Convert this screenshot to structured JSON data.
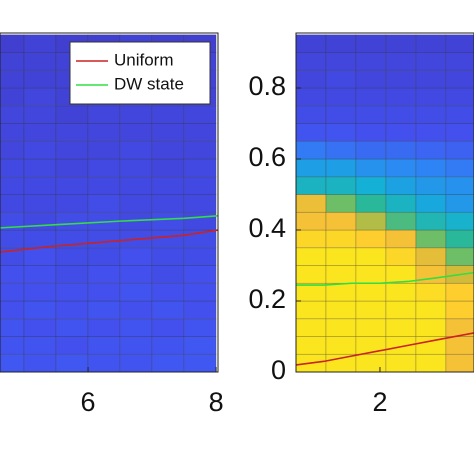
{
  "chart_data": [
    {
      "type": "heatmap",
      "xlim": [
        4.625,
        8.03
      ],
      "ylim": [
        0,
        0.955
      ],
      "xticks": [
        6,
        8
      ],
      "legend": "upper-right",
      "colormap": [
        "#3e26a8",
        "#4352f0",
        "#2d88f5",
        "#13b0d8",
        "#2ab89a",
        "#7fbf5a",
        "#d3bb3a",
        "#fec335",
        "#f9fb0e"
      ],
      "x": [
        4.75,
        5.25,
        5.75,
        6.25,
        6.75,
        7.25,
        7.75
      ],
      "y": [
        0.025,
        0.075,
        0.125,
        0.175,
        0.225,
        0.275,
        0.325,
        0.375,
        0.425,
        0.475,
        0.525,
        0.575,
        0.625,
        0.675,
        0.725,
        0.775,
        0.825,
        0.875,
        0.925
      ],
      "z": [
        [
          0.14,
          0.13,
          0.14,
          0.13,
          0.13,
          0.14,
          0.14
        ],
        [
          0.13,
          0.13,
          0.12,
          0.13,
          0.13,
          0.13,
          0.14
        ],
        [
          0.13,
          0.12,
          0.13,
          0.12,
          0.13,
          0.12,
          0.13
        ],
        [
          0.12,
          0.13,
          0.12,
          0.13,
          0.12,
          0.13,
          0.12
        ],
        [
          0.12,
          0.12,
          0.12,
          0.12,
          0.13,
          0.12,
          0.12
        ],
        [
          0.12,
          0.12,
          0.11,
          0.12,
          0.12,
          0.11,
          0.12
        ],
        [
          0.11,
          0.12,
          0.11,
          0.11,
          0.12,
          0.11,
          0.11
        ],
        [
          0.11,
          0.11,
          0.11,
          0.11,
          0.11,
          0.11,
          0.11
        ],
        [
          0.11,
          0.1,
          0.11,
          0.11,
          0.1,
          0.11,
          0.1
        ],
        [
          0.1,
          0.1,
          0.1,
          0.11,
          0.1,
          0.1,
          0.1
        ],
        [
          0.1,
          0.1,
          0.1,
          0.1,
          0.1,
          0.1,
          0.1
        ],
        [
          0.1,
          0.1,
          0.09,
          0.1,
          0.1,
          0.09,
          0.1
        ],
        [
          0.09,
          0.1,
          0.09,
          0.09,
          0.1,
          0.09,
          0.09
        ],
        [
          0.09,
          0.09,
          0.09,
          0.09,
          0.09,
          0.09,
          0.09
        ],
        [
          0.09,
          0.09,
          0.08,
          0.09,
          0.09,
          0.09,
          0.09
        ],
        [
          0.08,
          0.09,
          0.08,
          0.08,
          0.09,
          0.08,
          0.08
        ],
        [
          0.08,
          0.08,
          0.08,
          0.08,
          0.08,
          0.08,
          0.08
        ],
        [
          0.08,
          0.08,
          0.08,
          0.08,
          0.08,
          0.08,
          0.08
        ],
        [
          0.07,
          0.08,
          0.07,
          0.07,
          0.08,
          0.07,
          0.07
        ]
      ],
      "series": [
        {
          "name": "Uniform",
          "color": "#cc2222",
          "x": [
            4.625,
            5.5,
            6.5,
            7.5,
            8.03
          ],
          "values": [
            0.338,
            0.355,
            0.37,
            0.385,
            0.4
          ]
        },
        {
          "name": "DW state",
          "color": "#33dd44",
          "x": [
            4.625,
            5.5,
            6.5,
            7.5,
            8.03
          ],
          "values": [
            0.406,
            0.415,
            0.425,
            0.433,
            0.44
          ]
        }
      ]
    },
    {
      "type": "heatmap",
      "xlim": [
        0.5,
        3.68
      ],
      "ylim": [
        0,
        0.955
      ],
      "xticks": [
        2
      ],
      "yticks": [
        0,
        0.2,
        0.4,
        0.6,
        0.8
      ],
      "colormap": [
        "#3e26a8",
        "#4352f0",
        "#2d88f5",
        "#13b0d8",
        "#2ab89a",
        "#7fbf5a",
        "#d3bb3a",
        "#fec335",
        "#f9fb0e"
      ],
      "x": [
        0.768,
        1.304,
        1.839,
        2.375,
        2.911,
        3.446
      ],
      "y": [
        0.025,
        0.075,
        0.125,
        0.175,
        0.225,
        0.275,
        0.325,
        0.375,
        0.425,
        0.475,
        0.525,
        0.575,
        0.625,
        0.675,
        0.725,
        0.775,
        0.825,
        0.875,
        0.925
      ],
      "z": [
        [
          0.95,
          0.95,
          0.95,
          0.95,
          0.95,
          0.85
        ],
        [
          0.95,
          0.95,
          0.95,
          0.95,
          0.95,
          0.85
        ],
        [
          0.95,
          0.95,
          0.95,
          0.95,
          0.95,
          0.85
        ],
        [
          0.95,
          0.95,
          0.95,
          0.95,
          0.95,
          0.9
        ],
        [
          0.95,
          0.95,
          0.95,
          0.95,
          0.93,
          0.9
        ],
        [
          0.95,
          0.95,
          0.95,
          0.95,
          0.85,
          0.75
        ],
        [
          0.95,
          0.95,
          0.95,
          0.92,
          0.8,
          0.6
        ],
        [
          0.92,
          0.92,
          0.9,
          0.85,
          0.6,
          0.5
        ],
        [
          0.85,
          0.85,
          0.7,
          0.55,
          0.45,
          0.4
        ],
        [
          0.82,
          0.6,
          0.5,
          0.42,
          0.35,
          0.3
        ],
        [
          0.42,
          0.42,
          0.38,
          0.33,
          0.3,
          0.28
        ],
        [
          0.32,
          0.32,
          0.28,
          0.26,
          0.24,
          0.22
        ],
        [
          0.22,
          0.2,
          0.18,
          0.18,
          0.17,
          0.16
        ],
        [
          0.13,
          0.13,
          0.12,
          0.12,
          0.12,
          0.12
        ],
        [
          0.11,
          0.11,
          0.11,
          0.11,
          0.11,
          0.11
        ],
        [
          0.1,
          0.1,
          0.1,
          0.1,
          0.1,
          0.1
        ],
        [
          0.09,
          0.1,
          0.09,
          0.09,
          0.09,
          0.09
        ],
        [
          0.09,
          0.09,
          0.09,
          0.09,
          0.09,
          0.09
        ],
        [
          0.08,
          0.08,
          0.08,
          0.08,
          0.08,
          0.08
        ]
      ],
      "series": [
        {
          "color": "#cc2222",
          "x": [
            0.5,
            1,
            1.5,
            2,
            2.5,
            3,
            3.68
          ],
          "values": [
            0.02,
            0.03,
            0.045,
            0.06,
            0.075,
            0.09,
            0.11
          ]
        },
        {
          "color": "#33dd44",
          "x": [
            0.5,
            1,
            1.5,
            2,
            2.5,
            3,
            3.68
          ],
          "values": [
            0.245,
            0.245,
            0.25,
            0.25,
            0.255,
            0.265,
            0.28
          ]
        }
      ]
    }
  ]
}
